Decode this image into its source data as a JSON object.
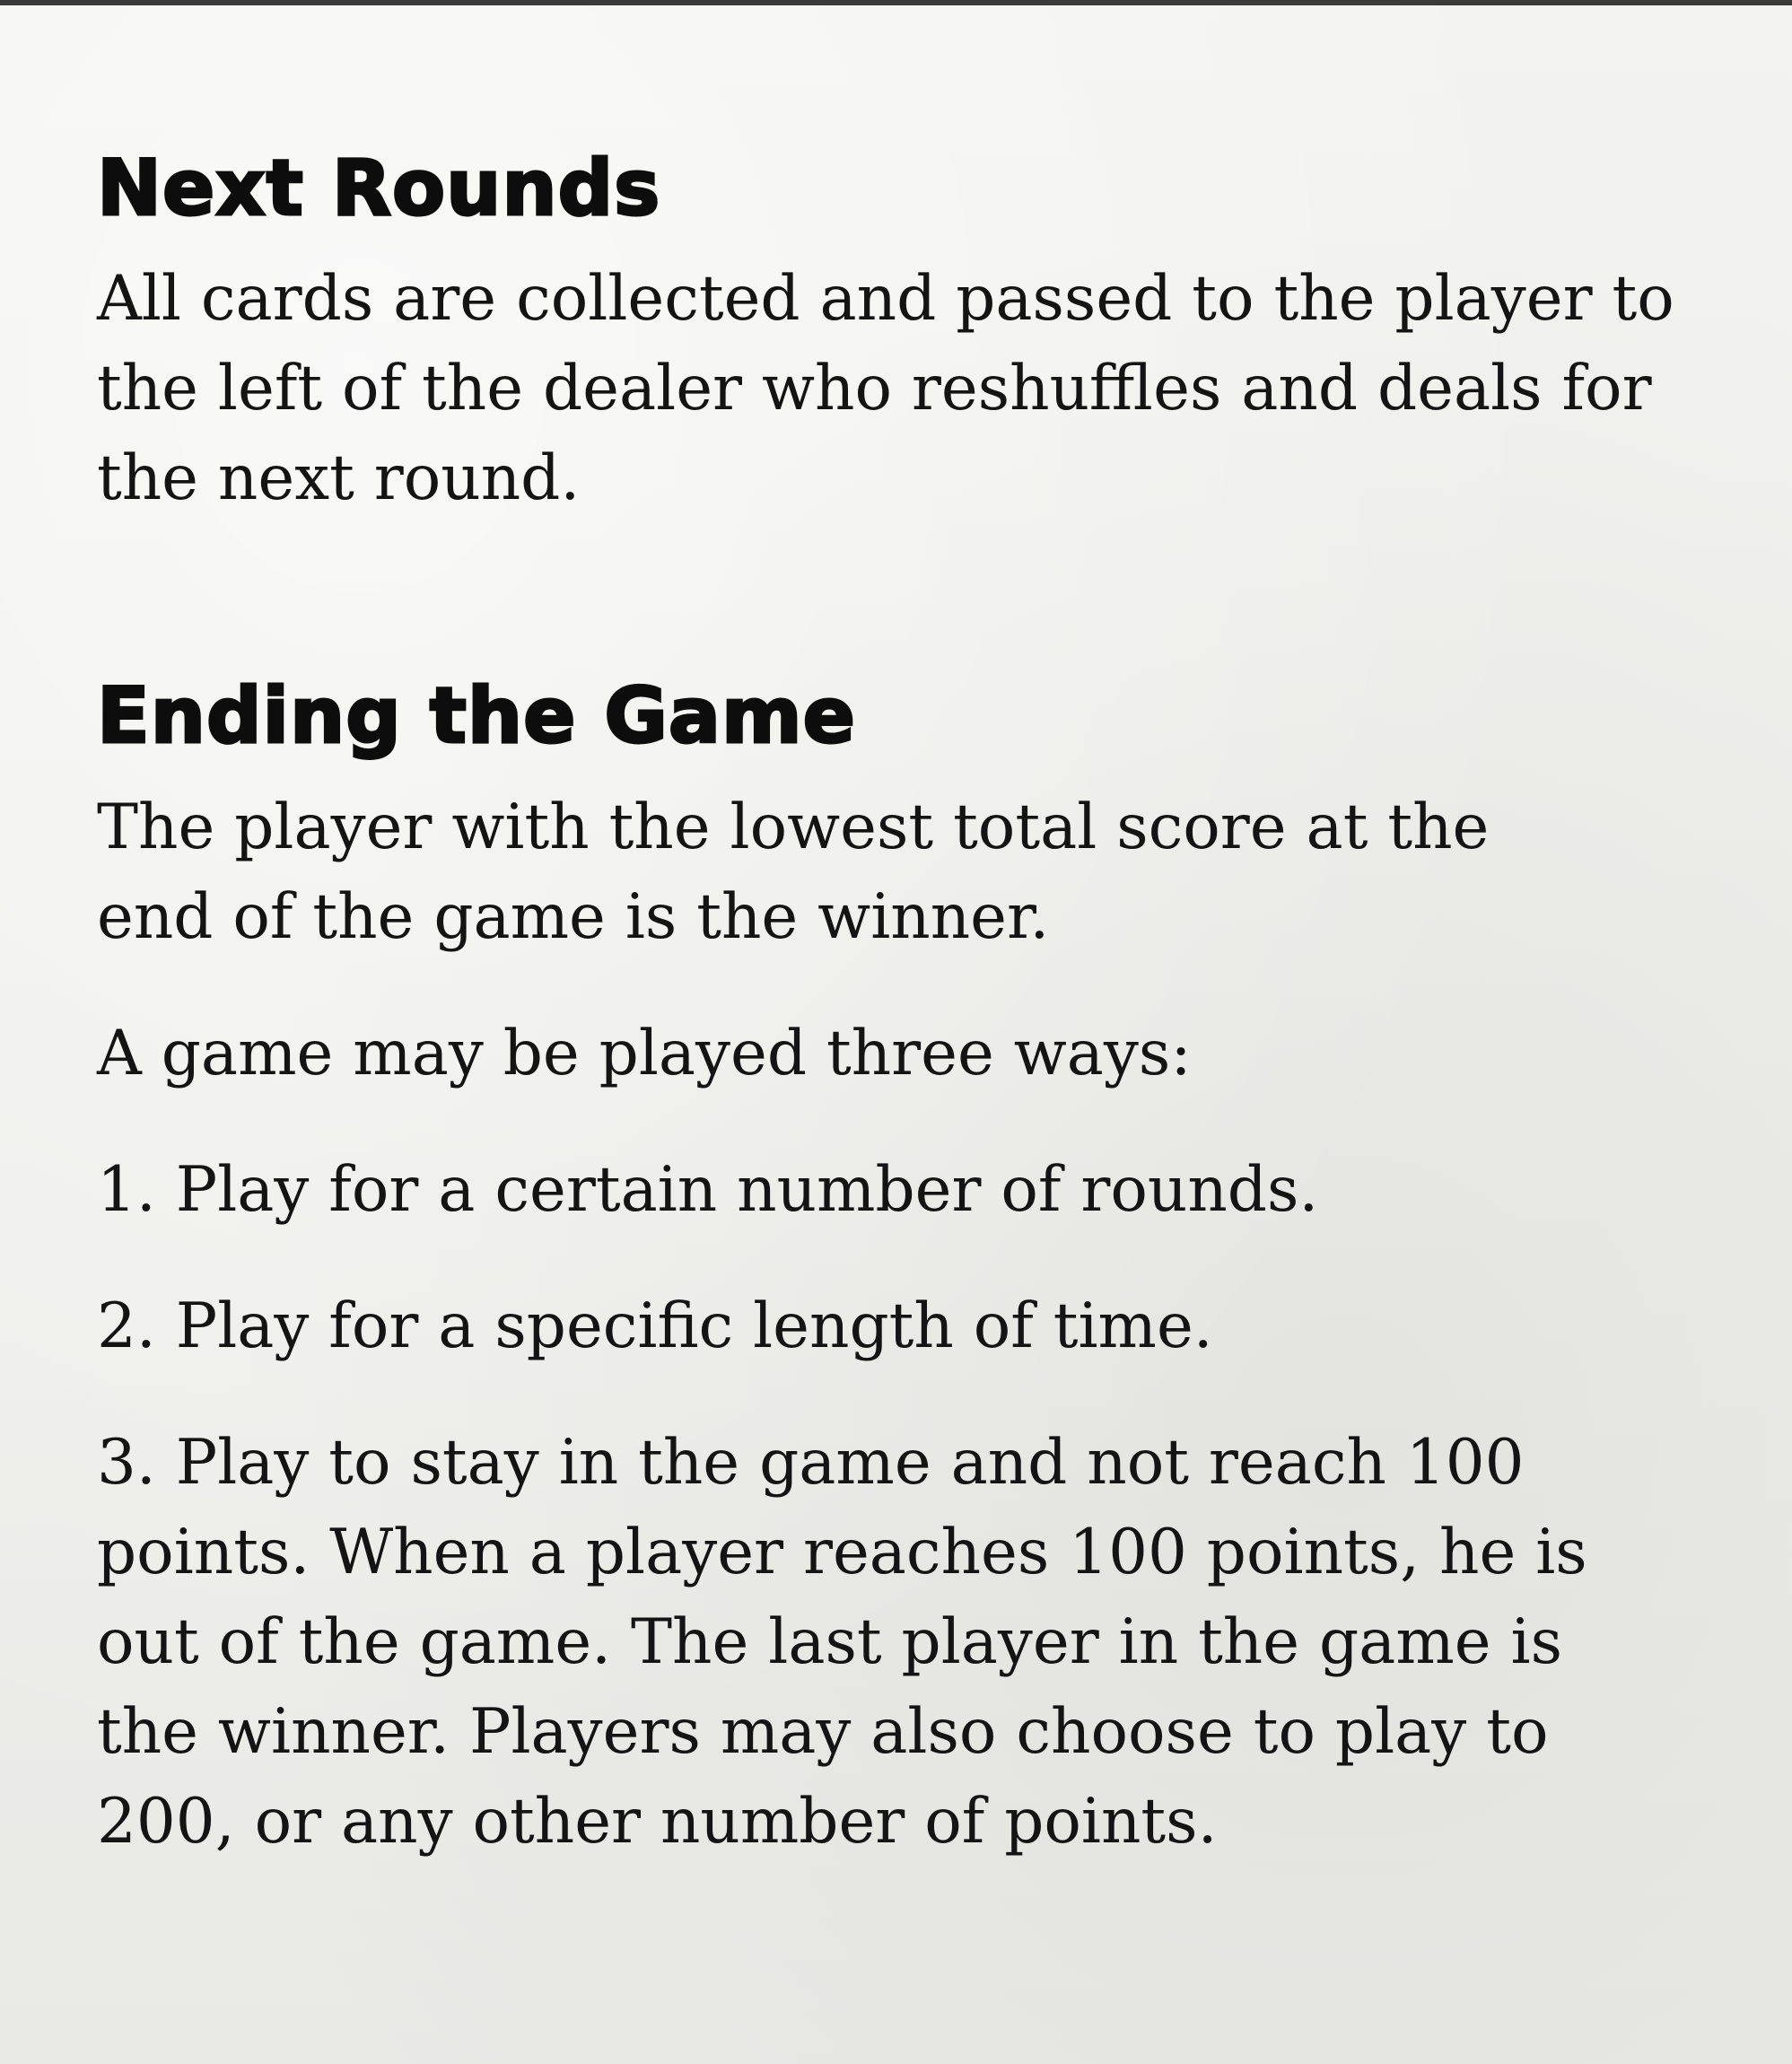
{
  "sections": {
    "next_rounds": {
      "heading": "Next Rounds",
      "body": "All cards are collected and passed to the player to the left of the dealer who reshuffles and deals for the next round."
    },
    "ending_the_game": {
      "heading": "Ending the Game",
      "intro": "The player with the lowest total score at the end of the game is the winner.",
      "ways_intro": "A game may be played three ways:",
      "ways": [
        "1. Play for a certain number of rounds.",
        "2. Play for a specific length of time.",
        "3. Play to stay in the game and not reach 100 points. When a player reaches 100 points, he is out of the game. The last player in the game is the winner. Players may also choose to play to 200, or any other number of points."
      ]
    }
  }
}
